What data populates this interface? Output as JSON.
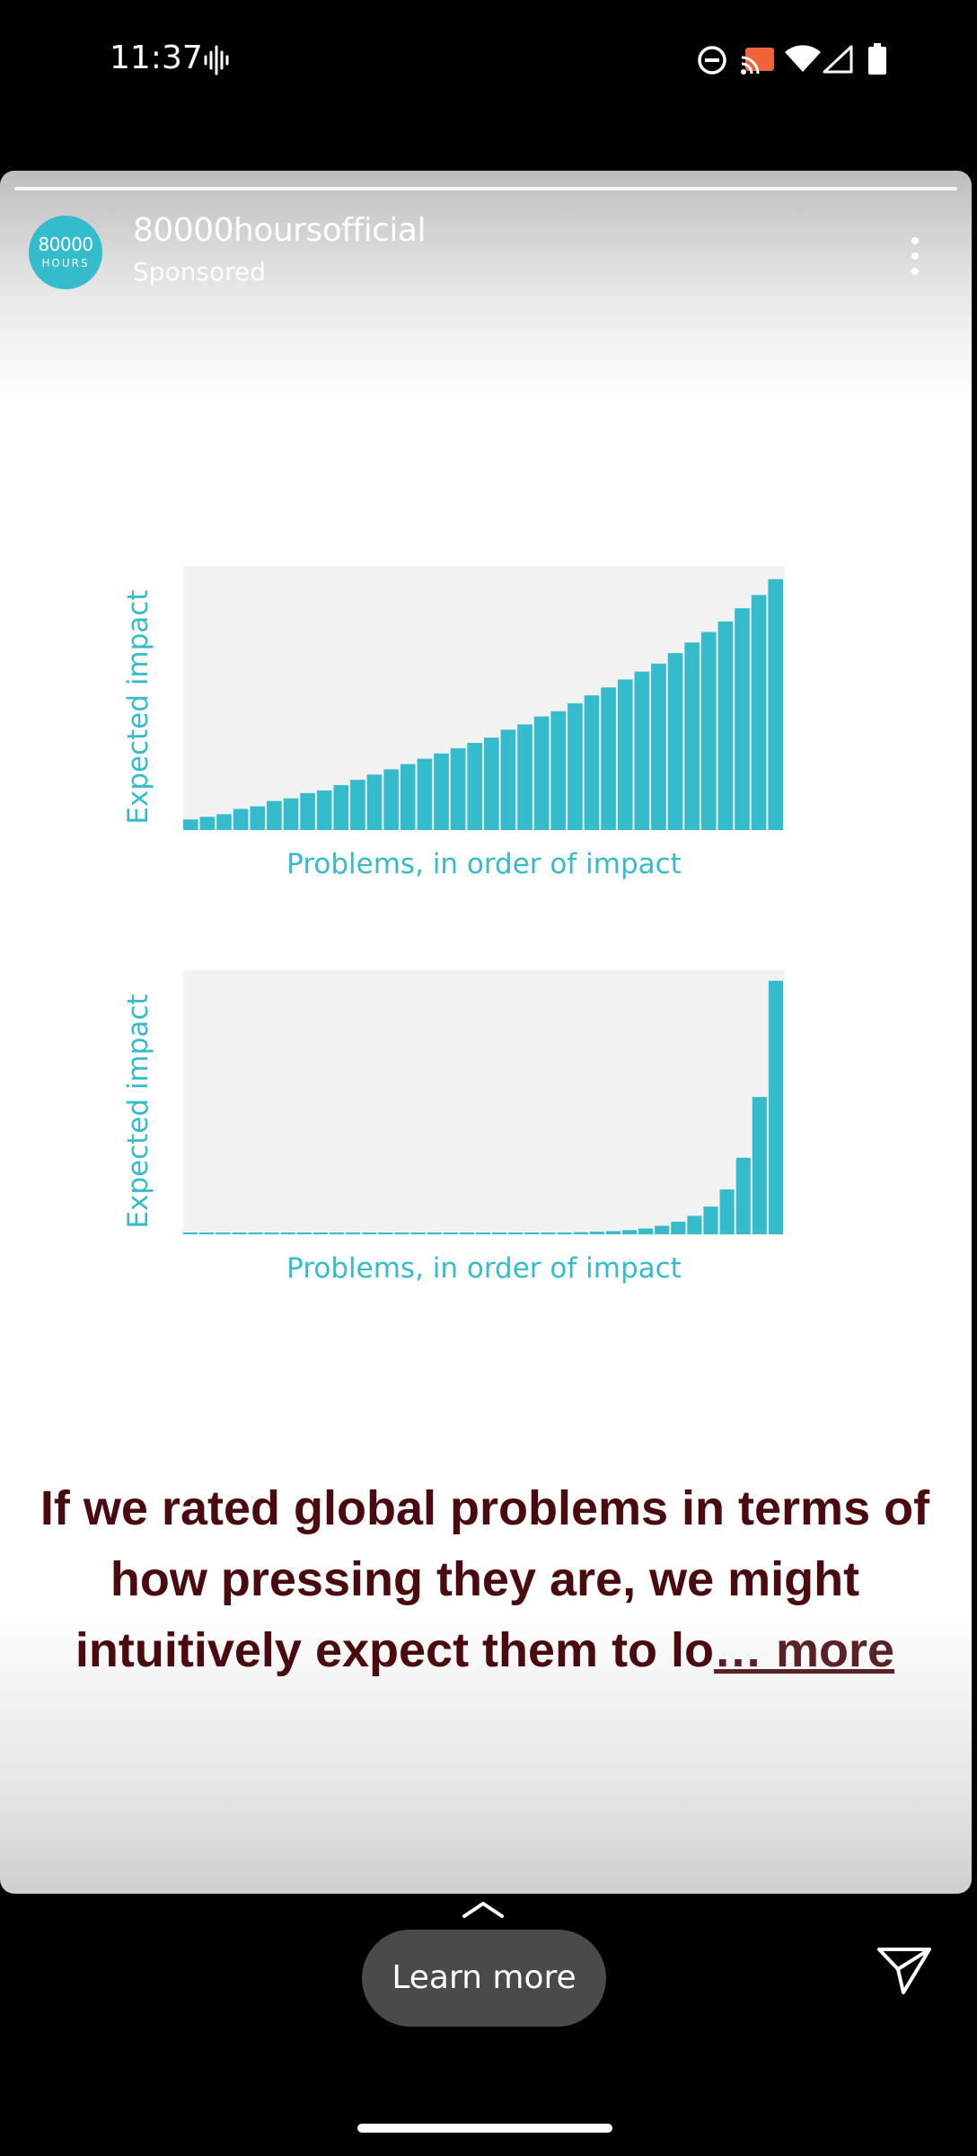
{
  "status_bar": {
    "time": "11:37",
    "icons": [
      "sound-waves-icon",
      "do-not-disturb-icon",
      "cast-icon",
      "wifi-icon",
      "cell-signal-icon",
      "battery-icon"
    ]
  },
  "story": {
    "account": {
      "avatar_line1": "80000",
      "avatar_line2": "HOURS",
      "username": "80000hoursofficial",
      "sponsored_label": "Sponsored"
    },
    "colors": {
      "bar": "#35bccc",
      "plot_bg": "#f2f2f2",
      "axis_text": "#35bccc",
      "caption": "#4a0a0e"
    },
    "caption": {
      "text": "If we rated global problems in terms of how pressing they are, we might intuitively expect them to lo",
      "more_label": "… more"
    }
  },
  "chart_data": [
    {
      "type": "bar",
      "xlabel": "Problems, in order of impact",
      "ylabel": "Expected impact",
      "ylim": [
        0,
        100
      ],
      "values": [
        4,
        5,
        6,
        8,
        9,
        11,
        12,
        14,
        15,
        17,
        19,
        21,
        23,
        25,
        27,
        29,
        31,
        33,
        35,
        38,
        40,
        43,
        45,
        48,
        51,
        54,
        57,
        60,
        63,
        67,
        71,
        75,
        79,
        84,
        89,
        95
      ]
    },
    {
      "type": "bar",
      "xlabel": "Problems, in order of impact",
      "ylabel": "Expected impact",
      "ylim": [
        0,
        100
      ],
      "values": [
        0.3,
        0.3,
        0.3,
        0.3,
        0.3,
        0.3,
        0.3,
        0.3,
        0.3,
        0.3,
        0.3,
        0.3,
        0.3,
        0.3,
        0.3,
        0.3,
        0.3,
        0.4,
        0.4,
        0.4,
        0.5,
        0.5,
        0.6,
        0.7,
        0.8,
        1,
        1.2,
        1.6,
        2.2,
        3.2,
        4.8,
        7,
        10.5,
        17,
        29,
        52,
        96
      ]
    }
  ],
  "bottom_bar": {
    "learn_more_label": "Learn more"
  }
}
